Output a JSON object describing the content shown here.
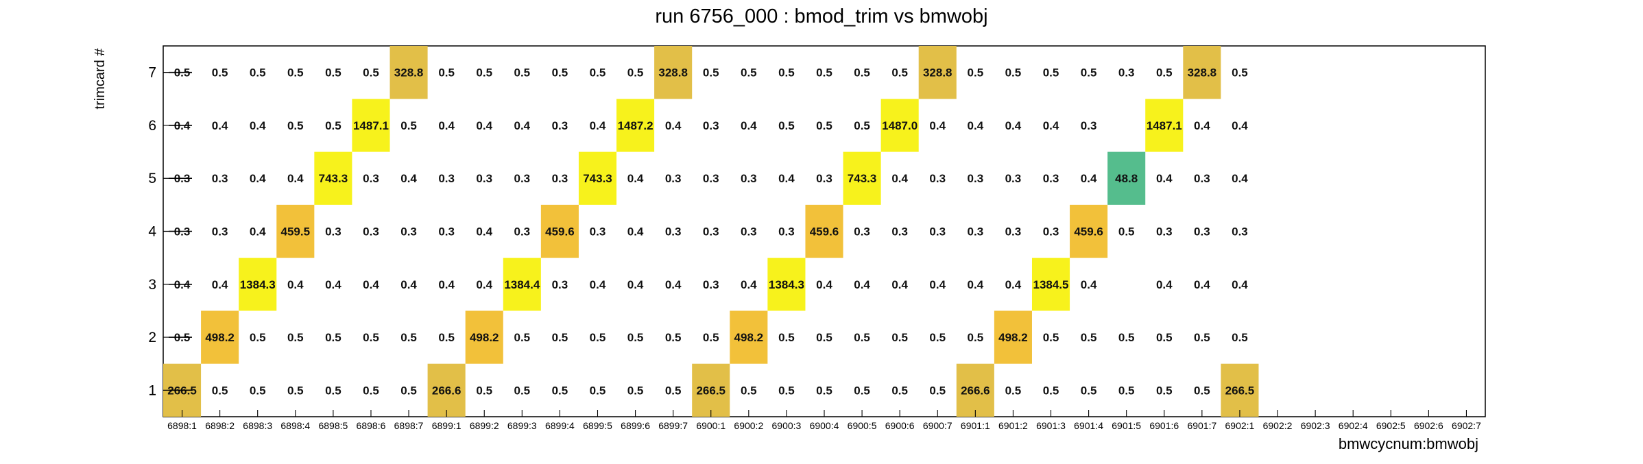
{
  "chart_data": {
    "type": "heatmap",
    "title": "run 6756_000 : bmod_trim vs bmwobj",
    "xlabel": "bmwcycnum:bmwobj",
    "ylabel": "trimcard #",
    "x_categories": [
      "6898:1",
      "6898:2",
      "6898:3",
      "6898:4",
      "6898:5",
      "6898:6",
      "6898:7",
      "6899:1",
      "6899:2",
      "6899:3",
      "6899:4",
      "6899:5",
      "6899:6",
      "6899:7",
      "6900:1",
      "6900:2",
      "6900:3",
      "6900:4",
      "6900:5",
      "6900:6",
      "6900:7",
      "6901:1",
      "6901:2",
      "6901:3",
      "6901:4",
      "6901:5",
      "6901:6",
      "6901:7",
      "6902:1",
      "6902:2",
      "6902:3",
      "6902:4",
      "6902:5",
      "6902:6",
      "6902:7"
    ],
    "y_categories": [
      "1",
      "2",
      "3",
      "4",
      "5",
      "6",
      "7"
    ],
    "cells": [
      {
        "x": 0,
        "y": 6,
        "v": 0.5
      },
      {
        "x": 1,
        "y": 6,
        "v": 0.5
      },
      {
        "x": 2,
        "y": 6,
        "v": 0.5
      },
      {
        "x": 3,
        "y": 6,
        "v": 0.5
      },
      {
        "x": 4,
        "y": 6,
        "v": 0.5
      },
      {
        "x": 5,
        "y": 6,
        "v": 0.5
      },
      {
        "x": 6,
        "y": 6,
        "v": 328.8
      },
      {
        "x": 7,
        "y": 6,
        "v": 0.5
      },
      {
        "x": 8,
        "y": 6,
        "v": 0.5
      },
      {
        "x": 9,
        "y": 6,
        "v": 0.5
      },
      {
        "x": 10,
        "y": 6,
        "v": 0.5
      },
      {
        "x": 11,
        "y": 6,
        "v": 0.5
      },
      {
        "x": 12,
        "y": 6,
        "v": 0.5
      },
      {
        "x": 13,
        "y": 6,
        "v": 328.8
      },
      {
        "x": 14,
        "y": 6,
        "v": 0.5
      },
      {
        "x": 15,
        "y": 6,
        "v": 0.5
      },
      {
        "x": 16,
        "y": 6,
        "v": 0.5
      },
      {
        "x": 17,
        "y": 6,
        "v": 0.5
      },
      {
        "x": 18,
        "y": 6,
        "v": 0.5
      },
      {
        "x": 19,
        "y": 6,
        "v": 0.5
      },
      {
        "x": 20,
        "y": 6,
        "v": 328.8
      },
      {
        "x": 21,
        "y": 6,
        "v": 0.5
      },
      {
        "x": 22,
        "y": 6,
        "v": 0.5
      },
      {
        "x": 23,
        "y": 6,
        "v": 0.5
      },
      {
        "x": 24,
        "y": 6,
        "v": 0.5
      },
      {
        "x": 25,
        "y": 6,
        "v": 0.3
      },
      {
        "x": 26,
        "y": 6,
        "v": 0.5
      },
      {
        "x": 27,
        "y": 6,
        "v": 328.8
      },
      {
        "x": 28,
        "y": 6,
        "v": 0.5
      },
      {
        "x": 0,
        "y": 5,
        "v": 0.4
      },
      {
        "x": 1,
        "y": 5,
        "v": 0.4
      },
      {
        "x": 2,
        "y": 5,
        "v": 0.4
      },
      {
        "x": 3,
        "y": 5,
        "v": 0.5
      },
      {
        "x": 4,
        "y": 5,
        "v": 0.5
      },
      {
        "x": 5,
        "y": 5,
        "v": 1487.1
      },
      {
        "x": 6,
        "y": 5,
        "v": 0.5
      },
      {
        "x": 7,
        "y": 5,
        "v": 0.4
      },
      {
        "x": 8,
        "y": 5,
        "v": 0.4
      },
      {
        "x": 9,
        "y": 5,
        "v": 0.4
      },
      {
        "x": 10,
        "y": 5,
        "v": 0.3
      },
      {
        "x": 11,
        "y": 5,
        "v": 0.4
      },
      {
        "x": 12,
        "y": 5,
        "v": 1487.2
      },
      {
        "x": 13,
        "y": 5,
        "v": 0.4
      },
      {
        "x": 14,
        "y": 5,
        "v": 0.3
      },
      {
        "x": 15,
        "y": 5,
        "v": 0.4
      },
      {
        "x": 16,
        "y": 5,
        "v": 0.5
      },
      {
        "x": 17,
        "y": 5,
        "v": 0.5
      },
      {
        "x": 18,
        "y": 5,
        "v": 0.5
      },
      {
        "x": 19,
        "y": 5,
        "v": 1487.0
      },
      {
        "x": 20,
        "y": 5,
        "v": 0.4
      },
      {
        "x": 21,
        "y": 5,
        "v": 0.4
      },
      {
        "x": 22,
        "y": 5,
        "v": 0.4
      },
      {
        "x": 23,
        "y": 5,
        "v": 0.4
      },
      {
        "x": 24,
        "y": 5,
        "v": 0.3
      },
      {
        "x": 26,
        "y": 5,
        "v": 1487.1
      },
      {
        "x": 27,
        "y": 5,
        "v": 0.4
      },
      {
        "x": 28,
        "y": 5,
        "v": 0.4
      },
      {
        "x": 0,
        "y": 4,
        "v": 0.3
      },
      {
        "x": 1,
        "y": 4,
        "v": 0.3
      },
      {
        "x": 2,
        "y": 4,
        "v": 0.4
      },
      {
        "x": 3,
        "y": 4,
        "v": 0.4
      },
      {
        "x": 4,
        "y": 4,
        "v": 743.3
      },
      {
        "x": 5,
        "y": 4,
        "v": 0.3
      },
      {
        "x": 6,
        "y": 4,
        "v": 0.4
      },
      {
        "x": 7,
        "y": 4,
        "v": 0.3
      },
      {
        "x": 8,
        "y": 4,
        "v": 0.3
      },
      {
        "x": 9,
        "y": 4,
        "v": 0.3
      },
      {
        "x": 10,
        "y": 4,
        "v": 0.3
      },
      {
        "x": 11,
        "y": 4,
        "v": 743.3
      },
      {
        "x": 12,
        "y": 4,
        "v": 0.4
      },
      {
        "x": 13,
        "y": 4,
        "v": 0.3
      },
      {
        "x": 14,
        "y": 4,
        "v": 0.3
      },
      {
        "x": 15,
        "y": 4,
        "v": 0.3
      },
      {
        "x": 16,
        "y": 4,
        "v": 0.4
      },
      {
        "x": 17,
        "y": 4,
        "v": 0.3
      },
      {
        "x": 18,
        "y": 4,
        "v": 743.3
      },
      {
        "x": 19,
        "y": 4,
        "v": 0.4
      },
      {
        "x": 20,
        "y": 4,
        "v": 0.3
      },
      {
        "x": 21,
        "y": 4,
        "v": 0.3
      },
      {
        "x": 22,
        "y": 4,
        "v": 0.3
      },
      {
        "x": 23,
        "y": 4,
        "v": 0.3
      },
      {
        "x": 24,
        "y": 4,
        "v": 0.4
      },
      {
        "x": 25,
        "y": 4,
        "v": 48.8
      },
      {
        "x": 26,
        "y": 4,
        "v": 0.4
      },
      {
        "x": 27,
        "y": 4,
        "v": 0.3
      },
      {
        "x": 28,
        "y": 4,
        "v": 0.4
      },
      {
        "x": 0,
        "y": 3,
        "v": 0.3
      },
      {
        "x": 1,
        "y": 3,
        "v": 0.3
      },
      {
        "x": 2,
        "y": 3,
        "v": 0.4
      },
      {
        "x": 3,
        "y": 3,
        "v": 459.5
      },
      {
        "x": 4,
        "y": 3,
        "v": 0.3
      },
      {
        "x": 5,
        "y": 3,
        "v": 0.3
      },
      {
        "x": 6,
        "y": 3,
        "v": 0.3
      },
      {
        "x": 7,
        "y": 3,
        "v": 0.3
      },
      {
        "x": 8,
        "y": 3,
        "v": 0.4
      },
      {
        "x": 9,
        "y": 3,
        "v": 0.3
      },
      {
        "x": 10,
        "y": 3,
        "v": 459.6
      },
      {
        "x": 11,
        "y": 3,
        "v": 0.3
      },
      {
        "x": 12,
        "y": 3,
        "v": 0.4
      },
      {
        "x": 13,
        "y": 3,
        "v": 0.3
      },
      {
        "x": 14,
        "y": 3,
        "v": 0.3
      },
      {
        "x": 15,
        "y": 3,
        "v": 0.3
      },
      {
        "x": 16,
        "y": 3,
        "v": 0.3
      },
      {
        "x": 17,
        "y": 3,
        "v": 459.6
      },
      {
        "x": 18,
        "y": 3,
        "v": 0.3
      },
      {
        "x": 19,
        "y": 3,
        "v": 0.3
      },
      {
        "x": 20,
        "y": 3,
        "v": 0.3
      },
      {
        "x": 21,
        "y": 3,
        "v": 0.3
      },
      {
        "x": 22,
        "y": 3,
        "v": 0.3
      },
      {
        "x": 23,
        "y": 3,
        "v": 0.3
      },
      {
        "x": 24,
        "y": 3,
        "v": 459.6
      },
      {
        "x": 25,
        "y": 3,
        "v": 0.5
      },
      {
        "x": 26,
        "y": 3,
        "v": 0.3
      },
      {
        "x": 27,
        "y": 3,
        "v": 0.3
      },
      {
        "x": 28,
        "y": 3,
        "v": 0.3
      },
      {
        "x": 0,
        "y": 2,
        "v": 0.4
      },
      {
        "x": 1,
        "y": 2,
        "v": 0.4
      },
      {
        "x": 2,
        "y": 2,
        "v": 1384.3
      },
      {
        "x": 3,
        "y": 2,
        "v": 0.4
      },
      {
        "x": 4,
        "y": 2,
        "v": 0.4
      },
      {
        "x": 5,
        "y": 2,
        "v": 0.4
      },
      {
        "x": 6,
        "y": 2,
        "v": 0.4
      },
      {
        "x": 7,
        "y": 2,
        "v": 0.4
      },
      {
        "x": 8,
        "y": 2,
        "v": 0.4
      },
      {
        "x": 9,
        "y": 2,
        "v": 1384.4
      },
      {
        "x": 10,
        "y": 2,
        "v": 0.3
      },
      {
        "x": 11,
        "y": 2,
        "v": 0.4
      },
      {
        "x": 12,
        "y": 2,
        "v": 0.4
      },
      {
        "x": 13,
        "y": 2,
        "v": 0.4
      },
      {
        "x": 14,
        "y": 2,
        "v": 0.3
      },
      {
        "x": 15,
        "y": 2,
        "v": 0.4
      },
      {
        "x": 16,
        "y": 2,
        "v": 1384.3
      },
      {
        "x": 17,
        "y": 2,
        "v": 0.4
      },
      {
        "x": 18,
        "y": 2,
        "v": 0.4
      },
      {
        "x": 19,
        "y": 2,
        "v": 0.4
      },
      {
        "x": 20,
        "y": 2,
        "v": 0.4
      },
      {
        "x": 21,
        "y": 2,
        "v": 0.4
      },
      {
        "x": 22,
        "y": 2,
        "v": 0.4
      },
      {
        "x": 23,
        "y": 2,
        "v": 1384.5
      },
      {
        "x": 24,
        "y": 2,
        "v": 0.4
      },
      {
        "x": 26,
        "y": 2,
        "v": 0.4
      },
      {
        "x": 27,
        "y": 2,
        "v": 0.4
      },
      {
        "x": 28,
        "y": 2,
        "v": 0.4
      },
      {
        "x": 0,
        "y": 1,
        "v": 0.5
      },
      {
        "x": 1,
        "y": 1,
        "v": 498.2
      },
      {
        "x": 2,
        "y": 1,
        "v": 0.5
      },
      {
        "x": 3,
        "y": 1,
        "v": 0.5
      },
      {
        "x": 4,
        "y": 1,
        "v": 0.5
      },
      {
        "x": 5,
        "y": 1,
        "v": 0.5
      },
      {
        "x": 6,
        "y": 1,
        "v": 0.5
      },
      {
        "x": 7,
        "y": 1,
        "v": 0.5
      },
      {
        "x": 8,
        "y": 1,
        "v": 498.2
      },
      {
        "x": 9,
        "y": 1,
        "v": 0.5
      },
      {
        "x": 10,
        "y": 1,
        "v": 0.5
      },
      {
        "x": 11,
        "y": 1,
        "v": 0.5
      },
      {
        "x": 12,
        "y": 1,
        "v": 0.5
      },
      {
        "x": 13,
        "y": 1,
        "v": 0.5
      },
      {
        "x": 14,
        "y": 1,
        "v": 0.5
      },
      {
        "x": 15,
        "y": 1,
        "v": 498.2
      },
      {
        "x": 16,
        "y": 1,
        "v": 0.5
      },
      {
        "x": 17,
        "y": 1,
        "v": 0.5
      },
      {
        "x": 18,
        "y": 1,
        "v": 0.5
      },
      {
        "x": 19,
        "y": 1,
        "v": 0.5
      },
      {
        "x": 20,
        "y": 1,
        "v": 0.5
      },
      {
        "x": 21,
        "y": 1,
        "v": 0.5
      },
      {
        "x": 22,
        "y": 1,
        "v": 498.2
      },
      {
        "x": 23,
        "y": 1,
        "v": 0.5
      },
      {
        "x": 24,
        "y": 1,
        "v": 0.5
      },
      {
        "x": 25,
        "y": 1,
        "v": 0.5
      },
      {
        "x": 26,
        "y": 1,
        "v": 0.5
      },
      {
        "x": 27,
        "y": 1,
        "v": 0.5
      },
      {
        "x": 28,
        "y": 1,
        "v": 0.5
      },
      {
        "x": 0,
        "y": 0,
        "v": 266.5
      },
      {
        "x": 1,
        "y": 0,
        "v": 0.5
      },
      {
        "x": 2,
        "y": 0,
        "v": 0.5
      },
      {
        "x": 3,
        "y": 0,
        "v": 0.5
      },
      {
        "x": 4,
        "y": 0,
        "v": 0.5
      },
      {
        "x": 5,
        "y": 0,
        "v": 0.5
      },
      {
        "x": 6,
        "y": 0,
        "v": 0.5
      },
      {
        "x": 7,
        "y": 0,
        "v": 266.6
      },
      {
        "x": 8,
        "y": 0,
        "v": 0.5
      },
      {
        "x": 9,
        "y": 0,
        "v": 0.5
      },
      {
        "x": 10,
        "y": 0,
        "v": 0.5
      },
      {
        "x": 11,
        "y": 0,
        "v": 0.5
      },
      {
        "x": 12,
        "y": 0,
        "v": 0.5
      },
      {
        "x": 13,
        "y": 0,
        "v": 0.5
      },
      {
        "x": 14,
        "y": 0,
        "v": 266.5
      },
      {
        "x": 15,
        "y": 0,
        "v": 0.5
      },
      {
        "x": 16,
        "y": 0,
        "v": 0.5
      },
      {
        "x": 17,
        "y": 0,
        "v": 0.5
      },
      {
        "x": 18,
        "y": 0,
        "v": 0.5
      },
      {
        "x": 19,
        "y": 0,
        "v": 0.5
      },
      {
        "x": 20,
        "y": 0,
        "v": 0.5
      },
      {
        "x": 21,
        "y": 0,
        "v": 266.6
      },
      {
        "x": 22,
        "y": 0,
        "v": 0.5
      },
      {
        "x": 23,
        "y": 0,
        "v": 0.5
      },
      {
        "x": 24,
        "y": 0,
        "v": 0.5
      },
      {
        "x": 25,
        "y": 0,
        "v": 0.5
      },
      {
        "x": 26,
        "y": 0,
        "v": 0.5
      },
      {
        "x": 27,
        "y": 0,
        "v": 0.5
      },
      {
        "x": 28,
        "y": 0,
        "v": 266.5
      }
    ],
    "colors": {
      "large_gold": "#e2bf48",
      "medium_gold": "#f2c13a",
      "bright_yellow": "#f7f21c",
      "green": "#55bd8d",
      "text": "#111111",
      "axis": "#000000"
    }
  }
}
